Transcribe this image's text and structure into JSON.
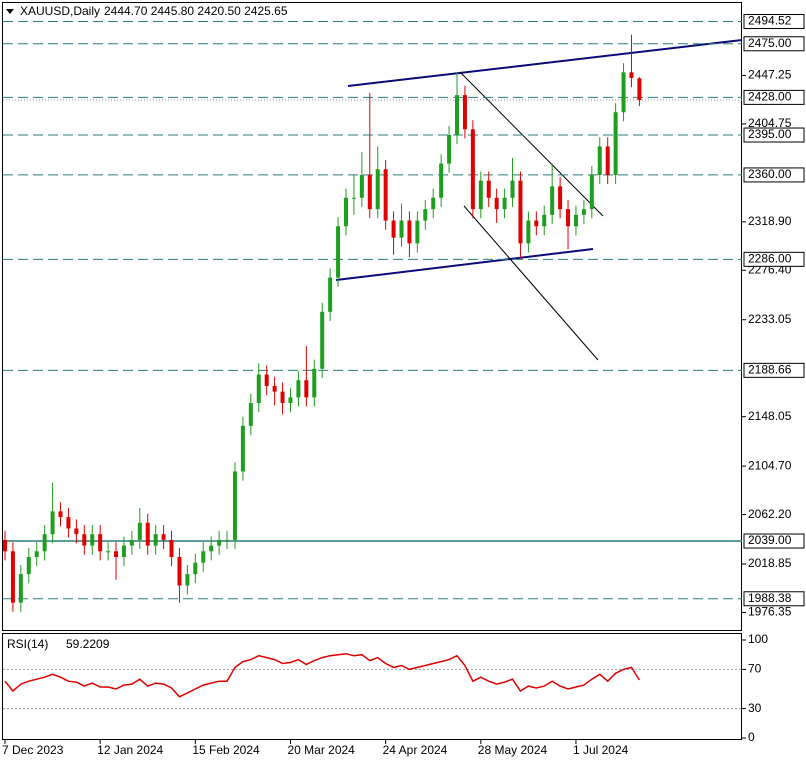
{
  "chart_data": {
    "type": "candlestick",
    "title": "XAUUSD,Daily",
    "quote": "2444.70 2445.80 2420.50 2425.65",
    "categories": [
      "7 Dec 2023",
      null,
      null,
      null,
      null,
      null,
      null,
      null,
      null,
      null,
      null,
      null,
      "12 Jan 2024",
      null,
      null,
      null,
      null,
      null,
      null,
      null,
      null,
      null,
      null,
      null,
      "15 Feb 2024",
      null,
      null,
      null,
      null,
      null,
      null,
      null,
      null,
      null,
      null,
      null,
      "20 Mar 2024",
      null,
      null,
      null,
      null,
      null,
      null,
      null,
      null,
      null,
      null,
      null,
      "24 Apr 2024",
      null,
      null,
      null,
      null,
      null,
      null,
      null,
      null,
      null,
      null,
      null,
      "28 May 2024",
      null,
      null,
      null,
      null,
      null,
      null,
      null,
      null,
      null,
      null,
      null,
      "1 Jul 2024",
      null,
      null,
      null,
      null,
      null,
      null,
      null,
      null
    ],
    "open": [
      2040,
      2030,
      1985,
      2010,
      2025,
      2030,
      2045,
      2065,
      2060,
      2050,
      2045,
      2035,
      2045,
      2030,
      2030,
      2025,
      2035,
      2040,
      2055,
      2035,
      2045,
      2040,
      2025,
      2000,
      2010,
      2020,
      2030,
      2035,
      2040,
      2040,
      2100,
      2140,
      2160,
      2185,
      2175,
      2170,
      2160,
      2165,
      2180,
      2165,
      2190,
      2240,
      2270,
      2315,
      2340,
      2340,
      2360,
      2330,
      2365,
      2320,
      2305,
      2320,
      2300,
      2320,
      2330,
      2340,
      2370,
      2395,
      2430,
      2400,
      2330,
      2355,
      2340,
      2330,
      2340,
      2355,
      2300,
      2320,
      2315,
      2325,
      2350,
      2330,
      2315,
      2325,
      2330,
      2360,
      2385,
      2360,
      2415,
      2450,
      2444.7
    ],
    "high": [
      2048,
      2038,
      2018,
      2033,
      2038,
      2053,
      2090,
      2073,
      2068,
      2058,
      2053,
      2053,
      2053,
      2038,
      2038,
      2043,
      2048,
      2068,
      2063,
      2053,
      2053,
      2048,
      2033,
      2018,
      2028,
      2038,
      2043,
      2048,
      2048,
      2108,
      2148,
      2168,
      2195,
      2193,
      2183,
      2178,
      2173,
      2188,
      2210,
      2198,
      2248,
      2278,
      2323,
      2348,
      2360,
      2380,
      2432,
      2385,
      2373,
      2328,
      2335,
      2328,
      2328,
      2338,
      2348,
      2378,
      2403,
      2450,
      2438,
      2408,
      2363,
      2363,
      2348,
      2348,
      2375,
      2363,
      2328,
      2328,
      2333,
      2370,
      2358,
      2338,
      2333,
      2338,
      2368,
      2393,
      2393,
      2423,
      2458,
      2483,
      2445.8
    ],
    "low": [
      2022,
      1977,
      1977,
      2002,
      2017,
      2022,
      2037,
      2052,
      2042,
      2037,
      2027,
      2027,
      2022,
      2022,
      2005,
      2017,
      2027,
      2032,
      2027,
      2027,
      2032,
      2017,
      1985,
      1992,
      2002,
      2012,
      2022,
      2027,
      2032,
      2032,
      2092,
      2132,
      2152,
      2167,
      2158,
      2150,
      2152,
      2157,
      2157,
      2157,
      2182,
      2232,
      2262,
      2307,
      2325,
      2332,
      2322,
      2322,
      2312,
      2290,
      2297,
      2288,
      2292,
      2312,
      2322,
      2332,
      2362,
      2387,
      2392,
      2322,
      2322,
      2332,
      2318,
      2322,
      2332,
      2287,
      2292,
      2307,
      2307,
      2317,
      2322,
      2295,
      2307,
      2317,
      2322,
      2352,
      2352,
      2352,
      2407,
      2437,
      2420.5
    ],
    "close": [
      2030,
      1985,
      2010,
      2025,
      2030,
      2045,
      2065,
      2060,
      2050,
      2045,
      2035,
      2045,
      2030,
      2030,
      2025,
      2035,
      2040,
      2055,
      2035,
      2045,
      2040,
      2025,
      2000,
      2010,
      2020,
      2030,
      2035,
      2040,
      2040,
      2100,
      2140,
      2160,
      2185,
      2175,
      2170,
      2160,
      2165,
      2180,
      2165,
      2190,
      2240,
      2270,
      2315,
      2340,
      2340,
      2360,
      2330,
      2365,
      2320,
      2305,
      2320,
      2300,
      2320,
      2330,
      2340,
      2370,
      2395,
      2430,
      2400,
      2330,
      2355,
      2340,
      2330,
      2340,
      2355,
      2300,
      2320,
      2315,
      2325,
      2350,
      2330,
      2315,
      2325,
      2330,
      2360,
      2385,
      2360,
      2415,
      2450,
      2445,
      2425.65
    ],
    "up_color": "#1e9e1e",
    "down_color": "#e00000",
    "ylim": [
      1961,
      2509
    ],
    "yticks": [
      2447.25,
      2404.75,
      {
        "value": 2318.9,
        "label": "2318.90"
      },
      {
        "value": 2276.4,
        "label": "2276.40"
      },
      2233.05,
      2148.05,
      {
        "value": 2104.7,
        "label": "2104.70"
      },
      {
        "value": 2062.2,
        "label": "2062.20"
      },
      2018.85,
      1976.35
    ],
    "levels": [
      {
        "value": 2494.52,
        "label": "2494.52",
        "style": "dashed"
      },
      {
        "value": 2475,
        "label": "2475.00",
        "style": "dashed"
      },
      {
        "value": 2428,
        "label": "2428.00",
        "style": "dashed"
      },
      {
        "value": 2395,
        "label": "2395.00",
        "style": "dashed"
      },
      {
        "value": 2360,
        "label": "2360.00",
        "style": "dashed"
      },
      {
        "value": 2286,
        "label": "2286.00",
        "style": "dashed"
      },
      {
        "value": 2188.66,
        "label": "2188.66",
        "style": "dashed"
      },
      {
        "value": 2039,
        "label": "2039.00",
        "style": "solid"
      },
      {
        "value": 1988.38,
        "label": "1988.38",
        "style": "dashed"
      }
    ],
    "level_color": "#2a7d7d",
    "rsi": {
      "name": "RSI(14)",
      "color": "#e00000",
      "values": [
        58,
        48,
        55,
        58,
        60,
        62,
        65,
        62,
        58,
        57,
        53,
        56,
        52,
        52,
        50,
        54,
        55,
        60,
        53,
        56,
        55,
        51,
        42,
        46,
        50,
        54,
        56,
        58,
        58,
        72,
        78,
        80,
        84,
        82,
        80,
        76,
        77,
        80,
        75,
        79,
        82,
        84,
        85,
        86,
        84,
        85,
        79,
        82,
        76,
        72,
        74,
        70,
        72,
        74,
        76,
        78,
        80,
        84,
        74,
        58,
        62,
        58,
        55,
        57,
        60,
        48,
        53,
        51,
        53,
        58,
        53,
        50,
        52,
        54,
        60,
        65,
        58,
        66,
        70,
        72,
        59.2209
      ],
      "ylim": [
        0,
        100
      ],
      "yticks": [
        100,
        70,
        30,
        0
      ],
      "levels": [
        70,
        30
      ]
    }
  }
}
